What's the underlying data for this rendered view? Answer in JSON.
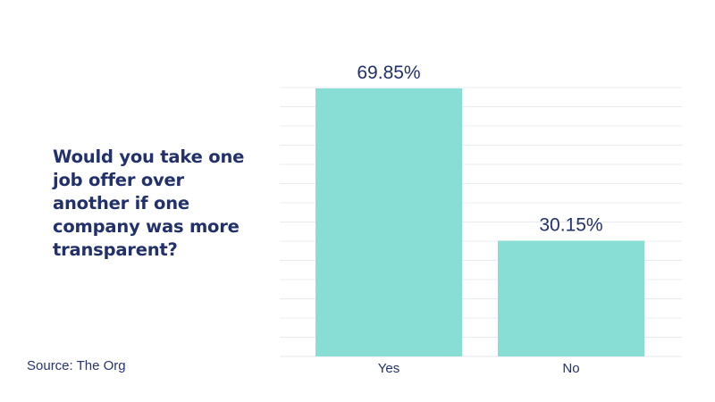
{
  "question": "Would you take one job offer over another if one company was more transparent?",
  "source": "Source: The Org",
  "colors": {
    "bar": "#88ded5",
    "text": "#22306b",
    "grid": "#e9ecef"
  },
  "chart_data": {
    "type": "bar",
    "title": "Would you take one job offer over another if one company was more transparent?",
    "xlabel": "",
    "ylabel": "",
    "categories": [
      "Yes",
      "No"
    ],
    "values": [
      69.85,
      30.15
    ],
    "data_labels": [
      "69.85%",
      "30.15%"
    ],
    "ylim": [
      0,
      75
    ],
    "grid": true,
    "legend": "none"
  }
}
